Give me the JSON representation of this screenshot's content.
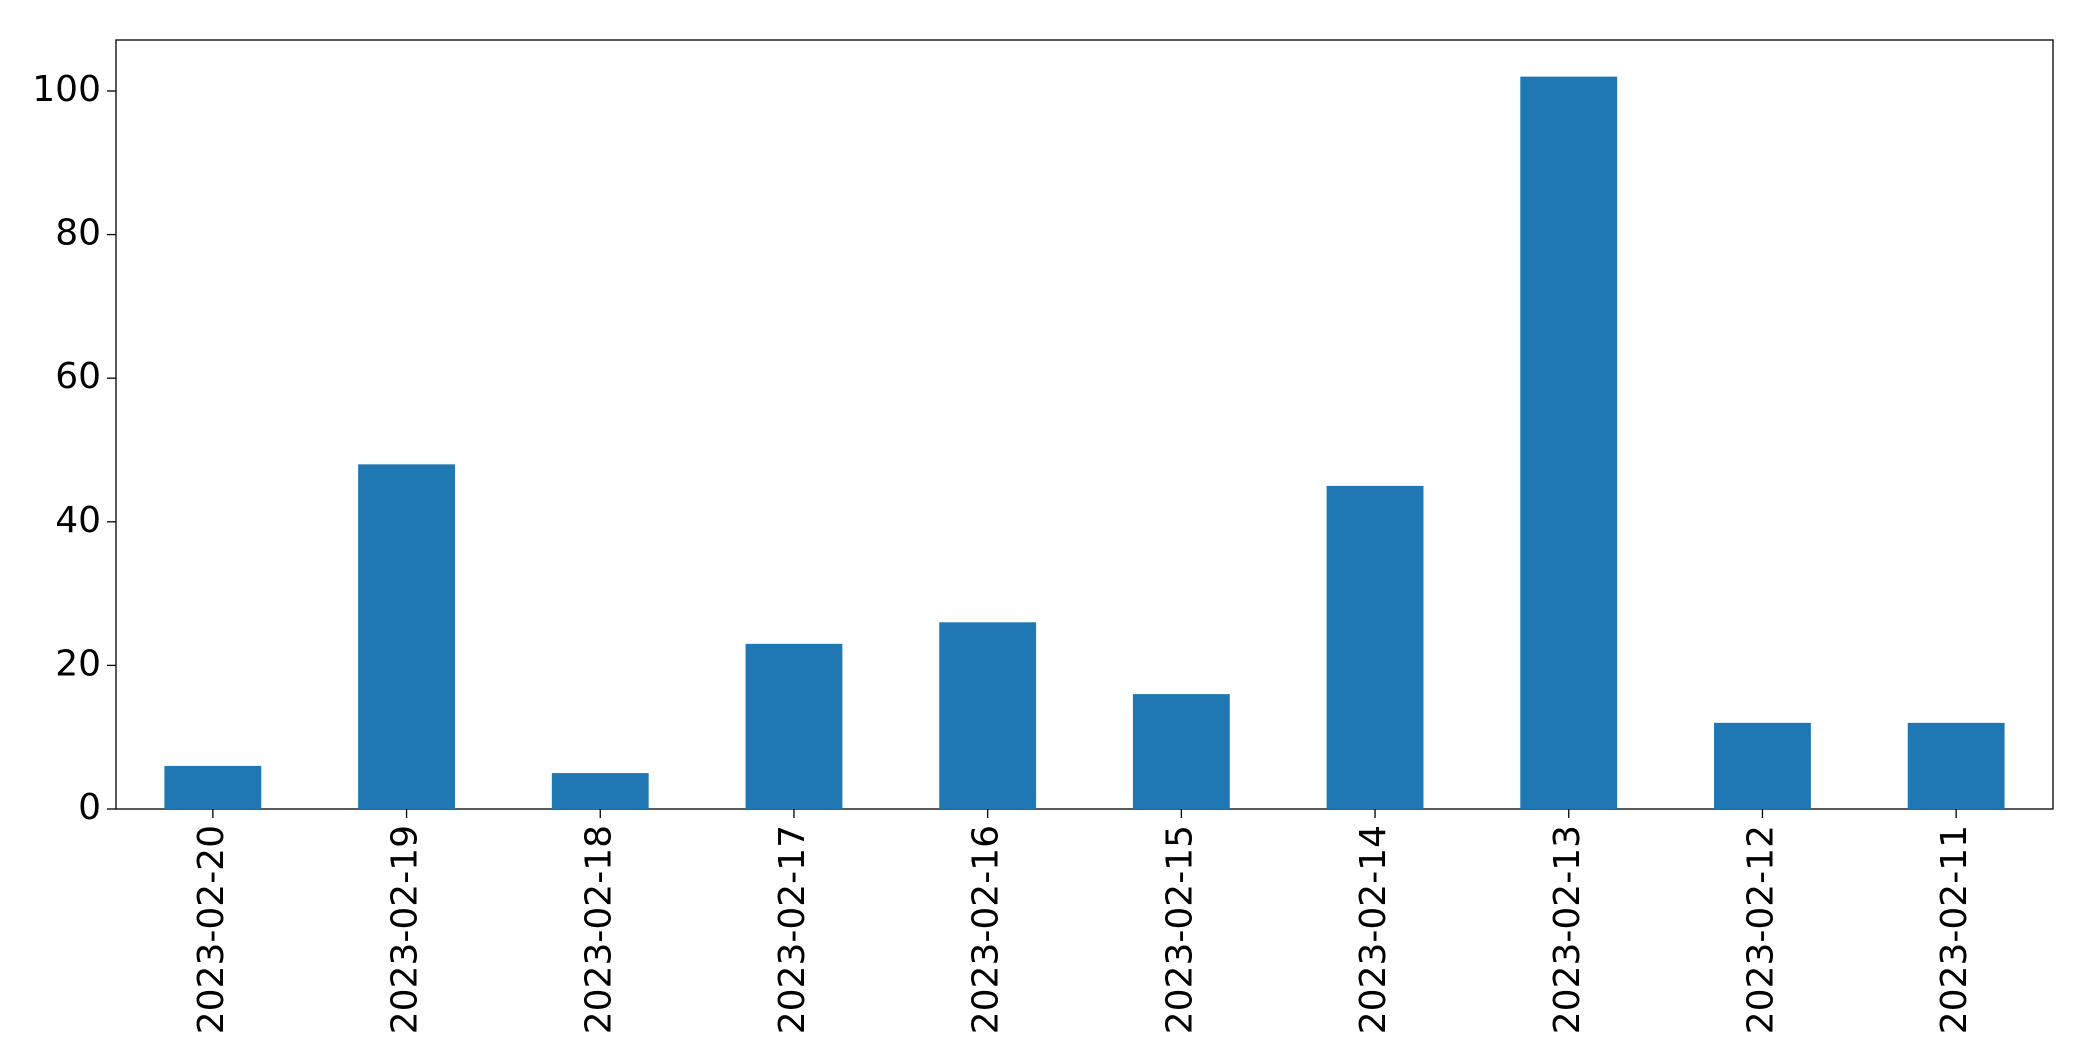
{
  "chart_data": {
    "type": "bar",
    "categories": [
      "2023-02-20",
      "2023-02-19",
      "2023-02-18",
      "2023-02-17",
      "2023-02-16",
      "2023-02-15",
      "2023-02-14",
      "2023-02-13",
      "2023-02-12",
      "2023-02-11"
    ],
    "values": [
      6,
      48,
      5,
      23,
      26,
      16,
      45,
      102,
      12,
      12
    ],
    "color": "#1f77b4",
    "ylim": [
      0,
      107.1
    ],
    "yticks": [
      0,
      20,
      40,
      60,
      80,
      100
    ],
    "grid": false
  }
}
